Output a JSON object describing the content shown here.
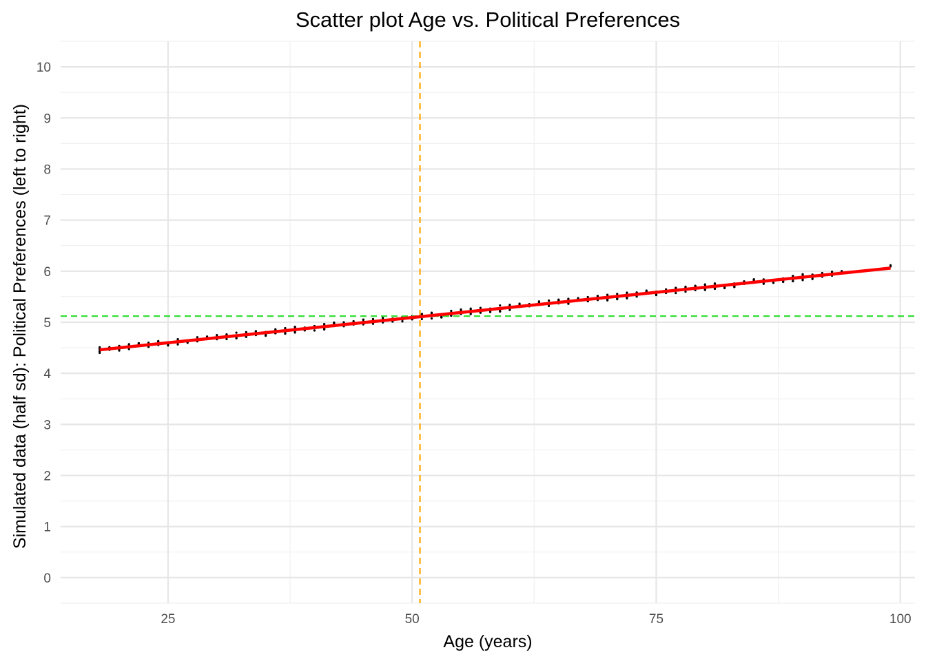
{
  "chart_data": {
    "type": "scatter",
    "title": "Scatter plot Age vs. Political Preferences",
    "xlabel": "Age (years)",
    "ylabel": "Simulated data (half sd): Political Preferences (left to right)",
    "xlim": [
      14,
      101.5
    ],
    "ylim": [
      -0.5,
      10.5
    ],
    "x_ticks": [
      25,
      50,
      75,
      100
    ],
    "x_tick_labels": [
      "25",
      "50",
      "75",
      "100"
    ],
    "y_ticks": [
      0,
      1,
      2,
      3,
      4,
      5,
      6,
      7,
      8,
      9,
      10
    ],
    "y_tick_labels": [
      "0",
      "1",
      "2",
      "3",
      "4",
      "5",
      "6",
      "7",
      "8",
      "9",
      "10"
    ],
    "grid": true,
    "points_x_range": [
      18,
      99
    ],
    "points_jitter_sd": 0.03,
    "regression_line": {
      "x": [
        18,
        99
      ],
      "y": [
        4.46,
        6.06
      ],
      "color": "#ff0000"
    },
    "vline": {
      "x": 50.8,
      "color": "#ffa500",
      "style": "dashed"
    },
    "hline": {
      "y": 5.12,
      "color": "#33dd33",
      "style": "dashed"
    },
    "point_color": "#000000"
  }
}
